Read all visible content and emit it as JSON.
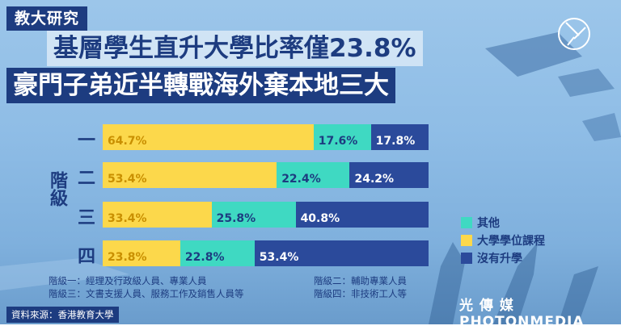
{
  "header": {
    "tag": "教大研究",
    "headline_1": "基層學生直升大學比率僅23.8%",
    "headline_2": "豪門子弟近半轉戰海外棄本地三大"
  },
  "chart_data": {
    "type": "bar",
    "orientation": "horizontal",
    "stacked": true,
    "y_axis_label": "階級",
    "categories": [
      "一",
      "二",
      "三",
      "四"
    ],
    "series": [
      {
        "name": "大學學位課程",
        "color": "#fcd84b",
        "values": [
          64.7,
          53.4,
          33.4,
          23.8
        ]
      },
      {
        "name": "其他",
        "color": "#3fd9c2",
        "values": [
          17.6,
          22.4,
          25.8,
          22.8
        ]
      },
      {
        "name": "沒有升學",
        "color": "#2b4a9b",
        "values": [
          17.8,
          24.2,
          40.8,
          53.4
        ]
      }
    ],
    "value_labels": [
      [
        "64.7%",
        "17.6%",
        "17.8%"
      ],
      [
        "53.4%",
        "22.4%",
        "24.2%"
      ],
      [
        "33.4%",
        "25.8%",
        "40.8%"
      ],
      [
        "23.8%",
        "22.8%",
        "53.4%"
      ]
    ],
    "legend": {
      "position": "right",
      "order": [
        "其他",
        "大學學位課程",
        "沒有升學"
      ]
    },
    "grid": false
  },
  "notes": {
    "col1": [
      "階級一：經理及行政級人員、專業人員",
      "階級三：文書支援人員、服務工作及銷售人員等"
    ],
    "col2": [
      "階級二：輔助專業人員",
      "階級四：非技術工人等"
    ]
  },
  "source": "資料來源：香港教育大學",
  "brand": "光 傳 媒  PHOTONMEDIA",
  "colors": {
    "navy": "#1d3c80",
    "yellow": "#fcd84b",
    "teal": "#3fd9c2",
    "blue": "#2b4a9b"
  }
}
